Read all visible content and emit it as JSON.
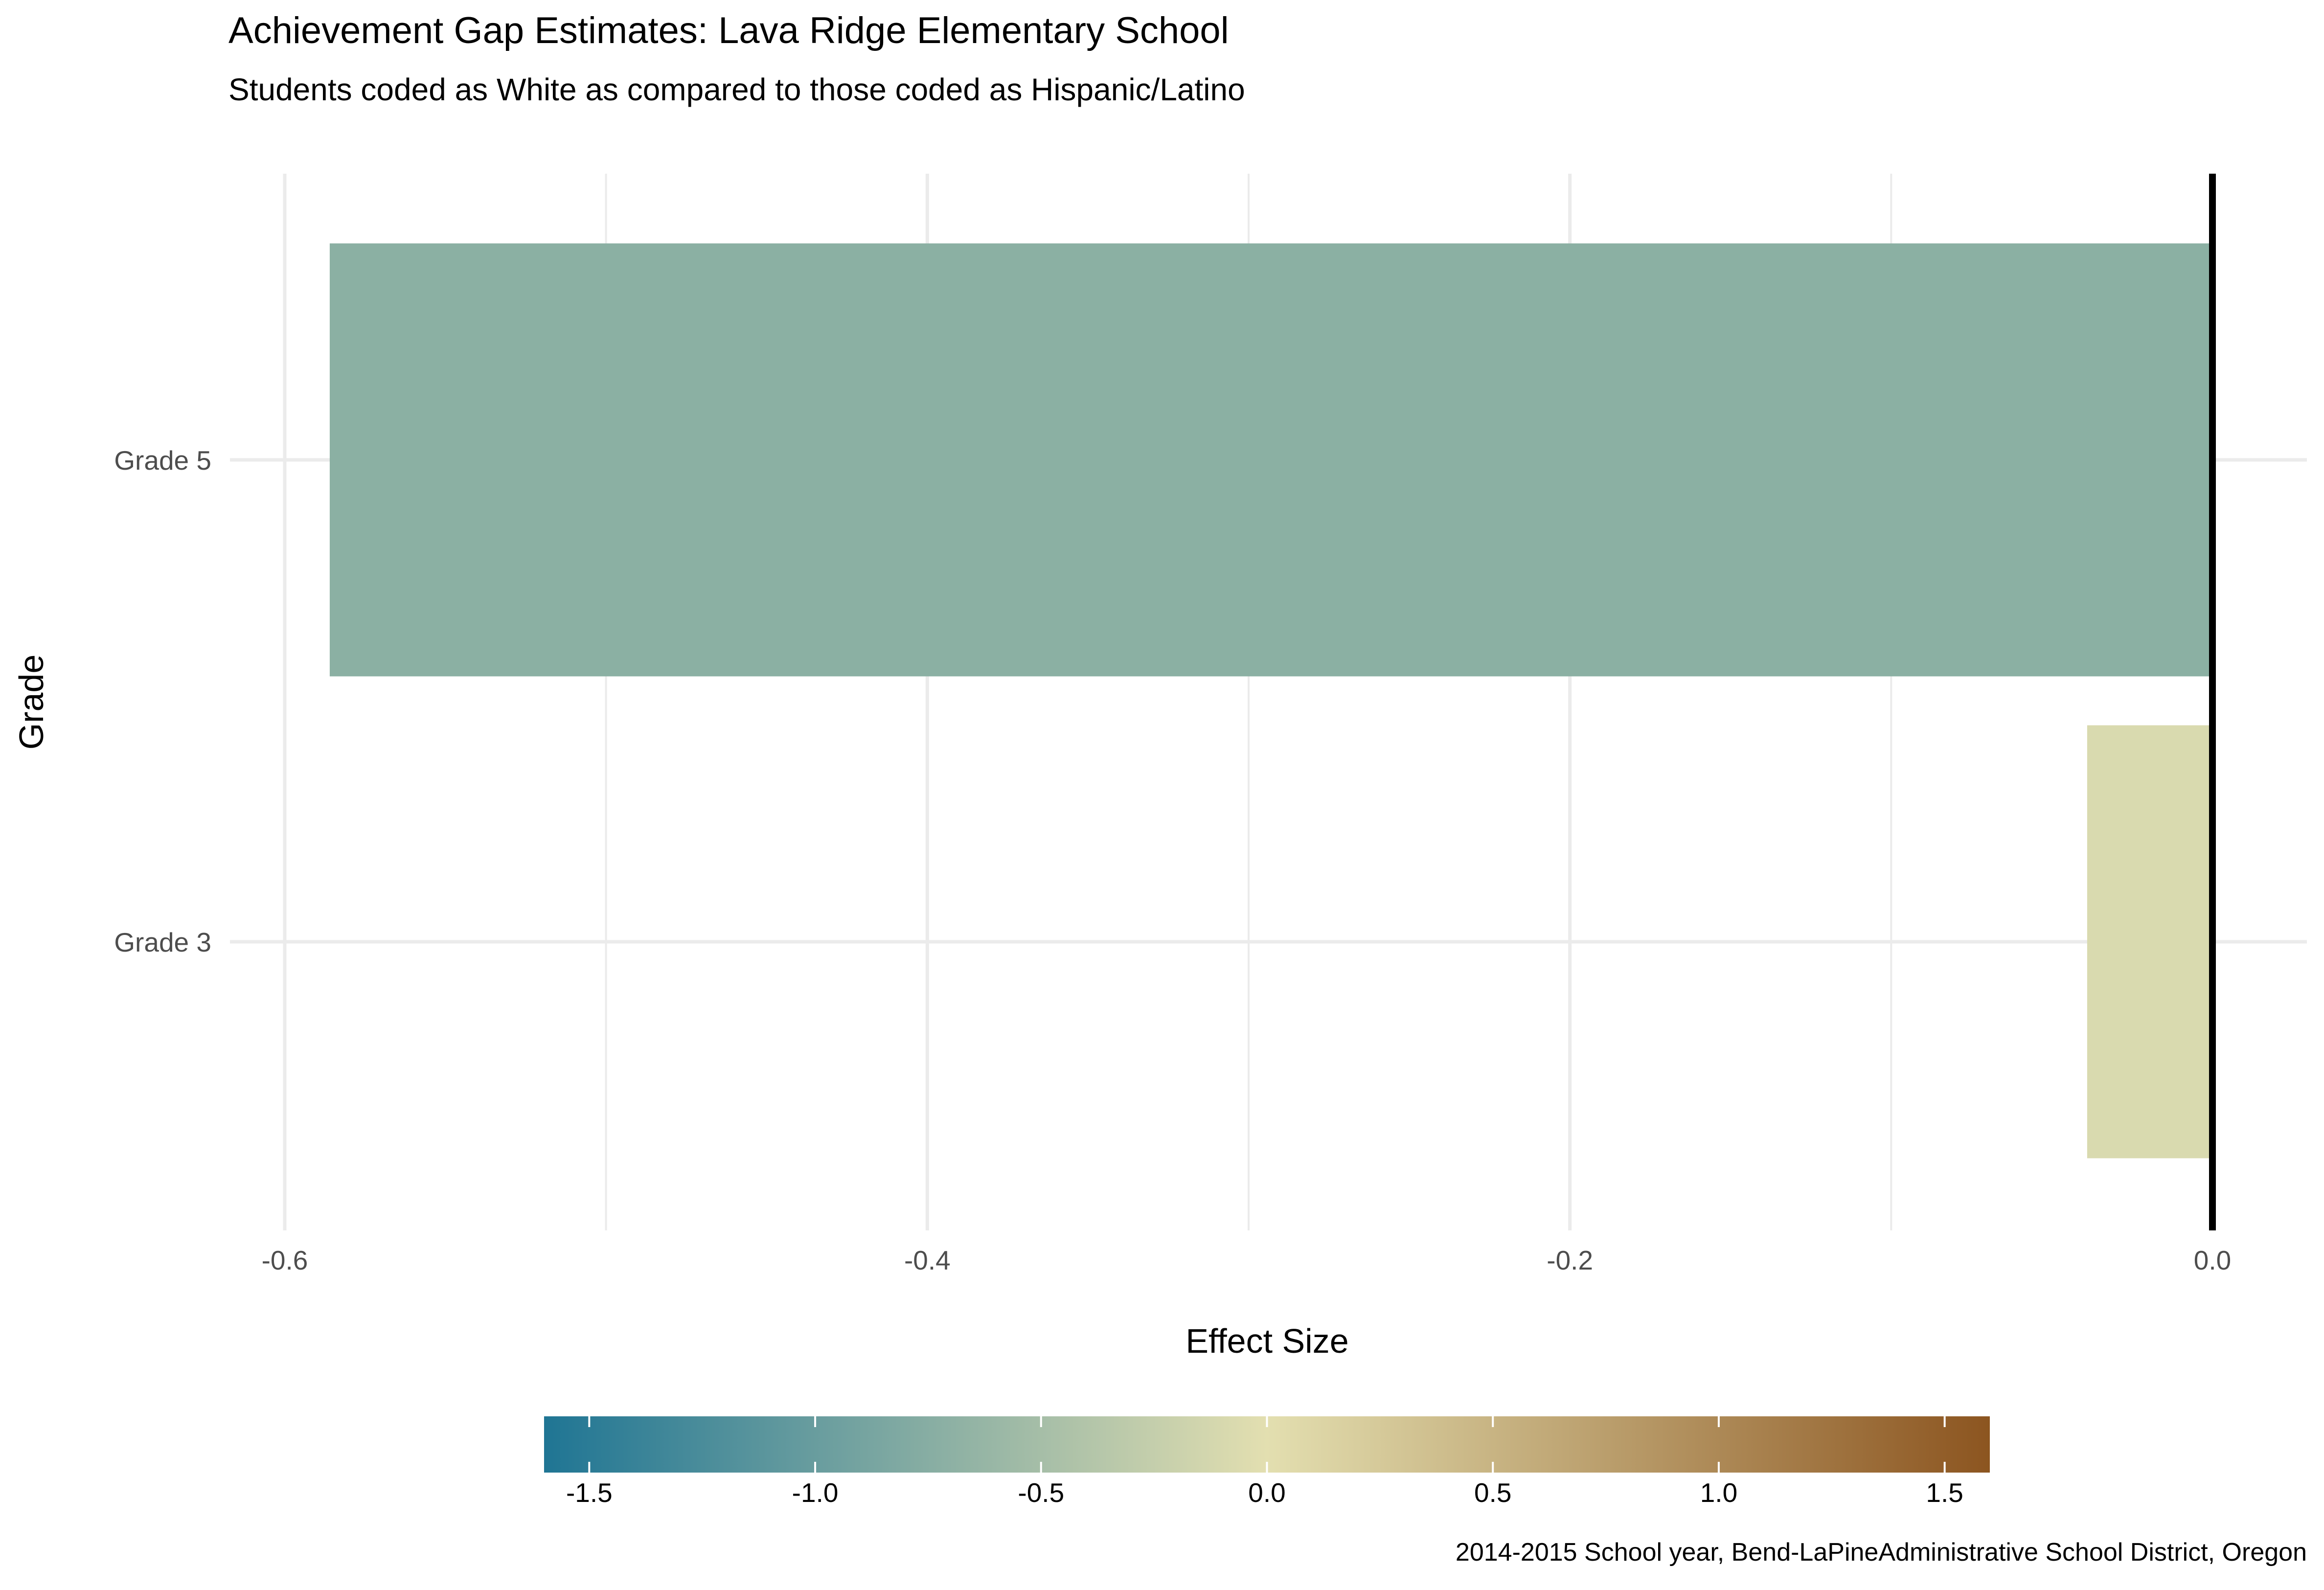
{
  "chart_data": {
    "type": "bar",
    "orientation": "horizontal",
    "title": "Achievement Gap Estimates: Lava Ridge Elementary School",
    "subtitle": "Students coded as White as compared to those coded as Hispanic/Latino",
    "xlabel": "Effect Size",
    "ylabel": "Grade",
    "categories": [
      "Grade 3",
      "Grade 5"
    ],
    "values": [
      -0.039,
      -0.586
    ],
    "xlim": [
      -0.6,
      0.0
    ],
    "xticks": [
      -0.6,
      -0.4,
      -0.2,
      0.0
    ],
    "xtick_labels": [
      "-0.6",
      "-0.4",
      "-0.2",
      "0.0"
    ],
    "grid": true,
    "zero_reference_line": true,
    "legend": {
      "type": "colorbar",
      "placement": "bottom",
      "range": [
        -1.6,
        1.6
      ],
      "ticks": [
        -1.5,
        -1.0,
        -0.5,
        0.0,
        0.5,
        1.0,
        1.5
      ],
      "tick_labels": [
        "-1.5",
        "-1.0",
        "-0.5",
        "0.0",
        "0.5",
        "1.0",
        "1.5"
      ],
      "colors": [
        "#1f7594",
        "#e3dfb0",
        "#8c5520"
      ]
    },
    "caption": "2014-2015 School year, Bend-LaPineAdministrative School District, Oregon"
  }
}
